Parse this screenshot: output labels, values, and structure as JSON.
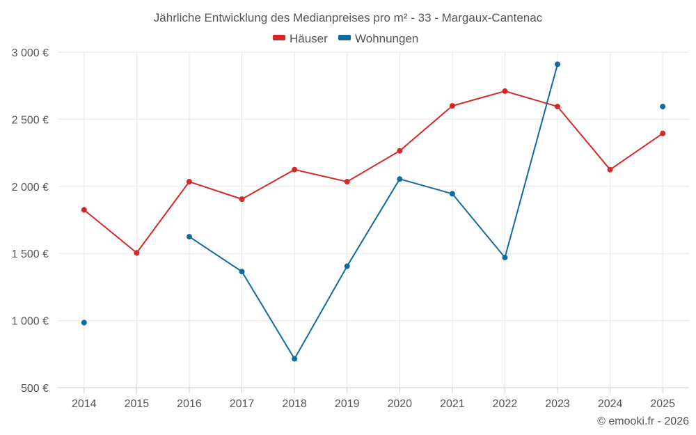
{
  "chart_data": {
    "type": "line",
    "title": "Jährliche Entwicklung des Medianpreises pro m² - 33 - Margaux-Cantenac",
    "categories": [
      "2014",
      "2015",
      "2016",
      "2017",
      "2018",
      "2019",
      "2020",
      "2021",
      "2022",
      "2023",
      "2024",
      "2025"
    ],
    "ylim": [
      500,
      3000
    ],
    "y_ticks": [
      500,
      1000,
      1500,
      2000,
      2500,
      3000
    ],
    "y_tick_labels": [
      "500 €",
      "1 000 €",
      "1 500 €",
      "2 000 €",
      "2 500 €",
      "3 000 €"
    ],
    "grid": true,
    "legend_position": "top-center",
    "series": [
      {
        "name": "Häuser",
        "color": "#d62728",
        "values": [
          1825,
          1505,
          2035,
          1905,
          2125,
          2035,
          2265,
          2600,
          2710,
          2595,
          2125,
          2395
        ]
      },
      {
        "name": "Wohnungen",
        "color": "#0f6aa0",
        "values": [
          985,
          null,
          1625,
          1365,
          715,
          1405,
          2055,
          1945,
          1470,
          2910,
          null,
          2595
        ]
      }
    ]
  },
  "footer": {
    "copyright": "© emooki.fr - 2026"
  }
}
